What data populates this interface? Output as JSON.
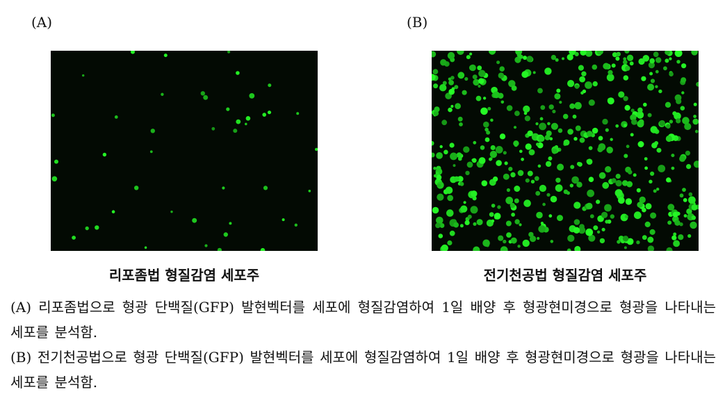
{
  "panels": [
    {
      "label": "(A)",
      "caption": "리포좀법 형질감염 세포주"
    },
    {
      "label": "(B)",
      "caption": "전기천공법 형질감염 세포주"
    }
  ],
  "description": [
    "(A) 리포좀법으로 형광 단백질(GFP) 발현벡터를 세포에 형질감염하여 1일 배양 후 형광현미경으로 형광을 나타내는 세포를 분석함.",
    "(B) 전기천공법으로 형광 단백질(GFP) 발현벡터를 세포에 형질감염하여 1일 배양 후 형광현미경으로 형광을 나타내는 세포를 분석함."
  ]
}
